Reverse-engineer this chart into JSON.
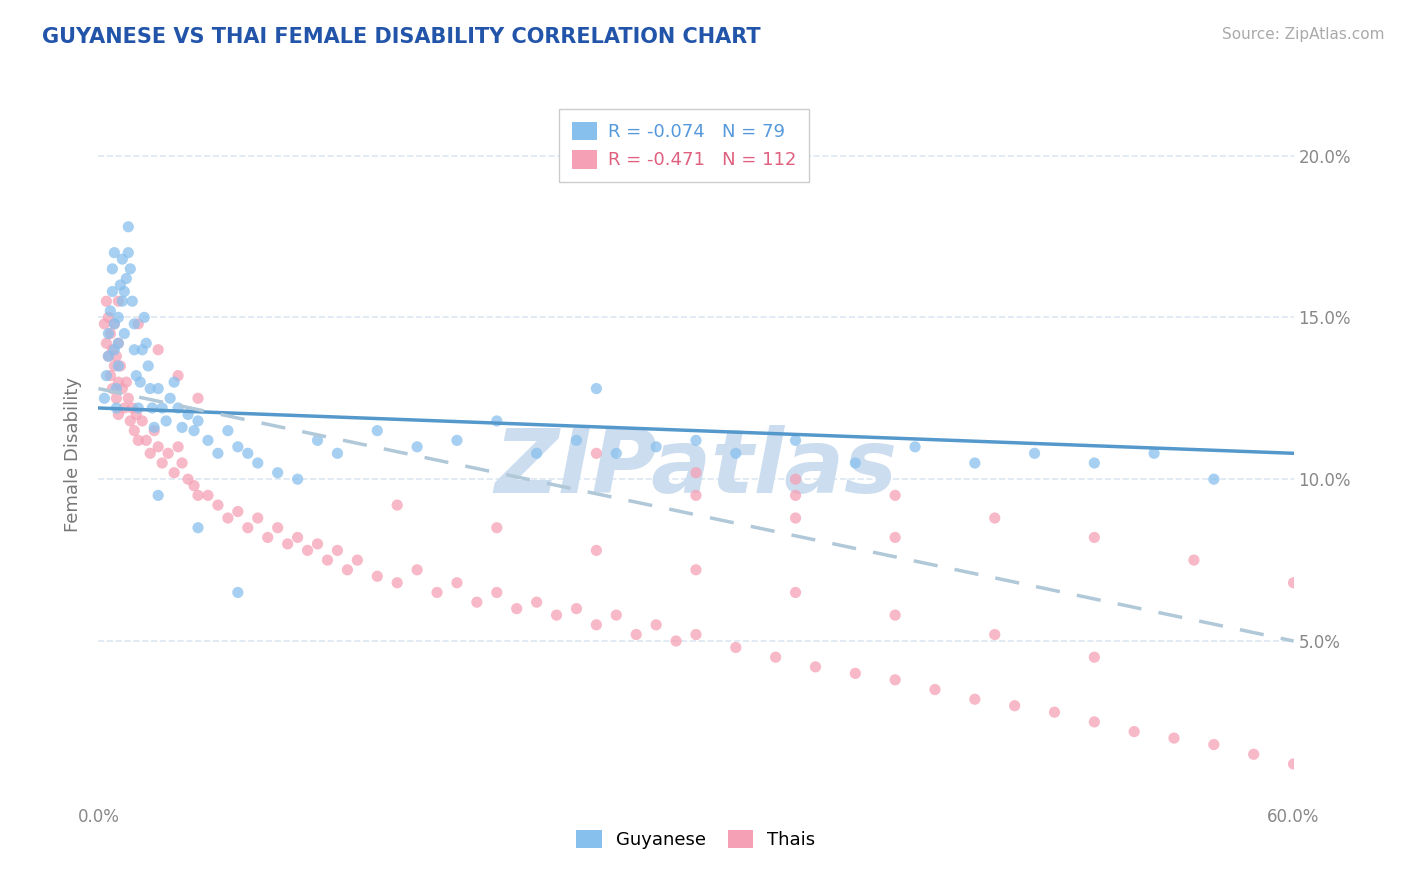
{
  "title": "GUYANESE VS THAI FEMALE DISABILITY CORRELATION CHART",
  "source": "Source: ZipAtlas.com",
  "ylabel": "Female Disability",
  "xmin": 0.0,
  "xmax": 0.6,
  "ymin": 0.0,
  "ymax": 0.215,
  "yticks": [
    0.05,
    0.1,
    0.15,
    0.2
  ],
  "ytick_labels": [
    "5.0%",
    "10.0%",
    "15.0%",
    "20.0%"
  ],
  "guyanese_color": "#88c0ed",
  "thai_color": "#f5a0b5",
  "guyanese_line_color": "#5599cc",
  "thai_line_color": "#e8607a",
  "title_color": "#2255aa",
  "watermark": "ZIPatlas",
  "watermark_color": "#ccddef",
  "background_color": "#ffffff",
  "grid_color": "#dde8f2",
  "guyanese_R": -0.074,
  "guyanese_N": 79,
  "thai_R": -0.471,
  "thai_N": 112,
  "guyanese_label_color": "#5599dd",
  "thai_label_color": "#e06080",
  "guyanese_x": [
    0.003,
    0.004,
    0.005,
    0.005,
    0.006,
    0.007,
    0.007,
    0.008,
    0.008,
    0.008,
    0.009,
    0.009,
    0.01,
    0.01,
    0.01,
    0.011,
    0.012,
    0.012,
    0.013,
    0.013,
    0.014,
    0.015,
    0.015,
    0.016,
    0.017,
    0.018,
    0.018,
    0.019,
    0.02,
    0.021,
    0.022,
    0.023,
    0.024,
    0.025,
    0.026,
    0.027,
    0.028,
    0.03,
    0.032,
    0.034,
    0.036,
    0.038,
    0.04,
    0.042,
    0.045,
    0.048,
    0.05,
    0.055,
    0.06,
    0.065,
    0.07,
    0.075,
    0.08,
    0.09,
    0.1,
    0.11,
    0.12,
    0.14,
    0.16,
    0.18,
    0.2,
    0.22,
    0.24,
    0.26,
    0.28,
    0.3,
    0.32,
    0.35,
    0.38,
    0.41,
    0.44,
    0.47,
    0.5,
    0.53,
    0.56,
    0.03,
    0.05,
    0.07,
    0.25
  ],
  "guyanese_y": [
    0.125,
    0.132,
    0.138,
    0.145,
    0.152,
    0.158,
    0.165,
    0.17,
    0.148,
    0.14,
    0.128,
    0.122,
    0.135,
    0.142,
    0.15,
    0.16,
    0.155,
    0.168,
    0.145,
    0.158,
    0.162,
    0.17,
    0.178,
    0.165,
    0.155,
    0.148,
    0.14,
    0.132,
    0.122,
    0.13,
    0.14,
    0.15,
    0.142,
    0.135,
    0.128,
    0.122,
    0.116,
    0.128,
    0.122,
    0.118,
    0.125,
    0.13,
    0.122,
    0.116,
    0.12,
    0.115,
    0.118,
    0.112,
    0.108,
    0.115,
    0.11,
    0.108,
    0.105,
    0.102,
    0.1,
    0.112,
    0.108,
    0.115,
    0.11,
    0.112,
    0.118,
    0.108,
    0.112,
    0.108,
    0.11,
    0.112,
    0.108,
    0.112,
    0.105,
    0.11,
    0.105,
    0.108,
    0.105,
    0.108,
    0.1,
    0.095,
    0.085,
    0.065,
    0.128
  ],
  "thai_x": [
    0.003,
    0.004,
    0.004,
    0.005,
    0.005,
    0.006,
    0.006,
    0.007,
    0.007,
    0.008,
    0.008,
    0.009,
    0.009,
    0.01,
    0.01,
    0.01,
    0.011,
    0.012,
    0.013,
    0.014,
    0.015,
    0.016,
    0.017,
    0.018,
    0.019,
    0.02,
    0.022,
    0.024,
    0.026,
    0.028,
    0.03,
    0.032,
    0.035,
    0.038,
    0.04,
    0.042,
    0.045,
    0.048,
    0.05,
    0.055,
    0.06,
    0.065,
    0.07,
    0.075,
    0.08,
    0.085,
    0.09,
    0.095,
    0.1,
    0.105,
    0.11,
    0.115,
    0.12,
    0.125,
    0.13,
    0.14,
    0.15,
    0.16,
    0.17,
    0.18,
    0.19,
    0.2,
    0.21,
    0.22,
    0.23,
    0.24,
    0.25,
    0.26,
    0.27,
    0.28,
    0.29,
    0.3,
    0.32,
    0.34,
    0.36,
    0.38,
    0.4,
    0.42,
    0.44,
    0.46,
    0.48,
    0.5,
    0.52,
    0.54,
    0.56,
    0.58,
    0.6,
    0.15,
    0.2,
    0.25,
    0.3,
    0.35,
    0.4,
    0.45,
    0.5,
    0.01,
    0.02,
    0.03,
    0.04,
    0.05,
    0.3,
    0.35,
    0.4,
    0.35,
    0.4,
    0.45,
    0.5,
    0.55,
    0.6,
    0.25,
    0.3,
    0.35
  ],
  "thai_y": [
    0.148,
    0.142,
    0.155,
    0.138,
    0.15,
    0.145,
    0.132,
    0.14,
    0.128,
    0.135,
    0.148,
    0.125,
    0.138,
    0.142,
    0.13,
    0.12,
    0.135,
    0.128,
    0.122,
    0.13,
    0.125,
    0.118,
    0.122,
    0.115,
    0.12,
    0.112,
    0.118,
    0.112,
    0.108,
    0.115,
    0.11,
    0.105,
    0.108,
    0.102,
    0.11,
    0.105,
    0.1,
    0.098,
    0.095,
    0.095,
    0.092,
    0.088,
    0.09,
    0.085,
    0.088,
    0.082,
    0.085,
    0.08,
    0.082,
    0.078,
    0.08,
    0.075,
    0.078,
    0.072,
    0.075,
    0.07,
    0.068,
    0.072,
    0.065,
    0.068,
    0.062,
    0.065,
    0.06,
    0.062,
    0.058,
    0.06,
    0.055,
    0.058,
    0.052,
    0.055,
    0.05,
    0.052,
    0.048,
    0.045,
    0.042,
    0.04,
    0.038,
    0.035,
    0.032,
    0.03,
    0.028,
    0.025,
    0.022,
    0.02,
    0.018,
    0.015,
    0.012,
    0.092,
    0.085,
    0.078,
    0.072,
    0.065,
    0.058,
    0.052,
    0.045,
    0.155,
    0.148,
    0.14,
    0.132,
    0.125,
    0.095,
    0.088,
    0.082,
    0.1,
    0.095,
    0.088,
    0.082,
    0.075,
    0.068,
    0.108,
    0.102,
    0.095
  ],
  "trend_guyanese_x0": 0.0,
  "trend_guyanese_x1": 0.6,
  "trend_guyanese_y0": 0.122,
  "trend_guyanese_y1": 0.108,
  "trend_thai_x0": 0.0,
  "trend_thai_x1": 0.6,
  "trend_thai_y0": 0.128,
  "trend_thai_y1": 0.05
}
